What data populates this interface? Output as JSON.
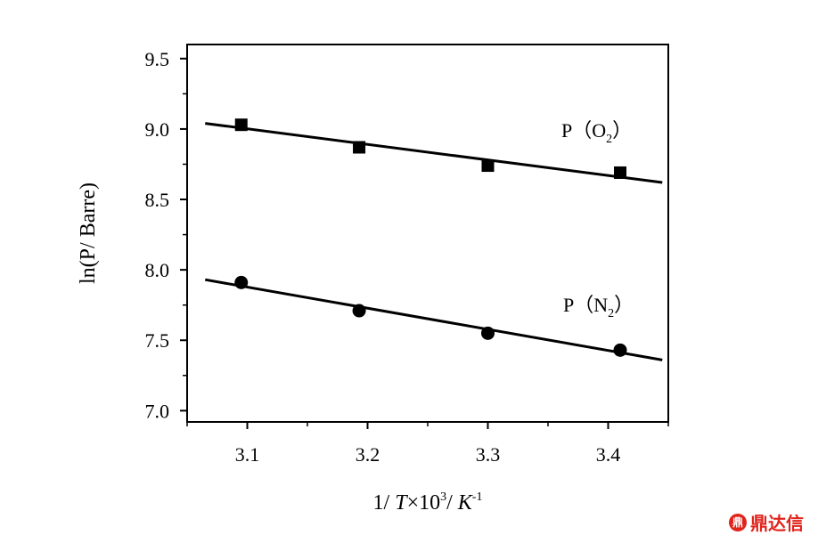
{
  "chart_data": {
    "type": "scatter",
    "xlabel": "1/ T×10³/ K⁻¹",
    "xlabel_parts": {
      "pre": "1/ ",
      "T": "T",
      "times": "×10",
      "exp3": "3",
      "slash": "/ ",
      "K": "K",
      "expneg1": "-1"
    },
    "ylabel": "ln(P/ Barre)",
    "xlim": [
      3.05,
      3.45
    ],
    "ylim": [
      6.92,
      9.6
    ],
    "xticks": [
      3.1,
      3.2,
      3.3,
      3.4
    ],
    "xtick_labels": [
      "3.1",
      "3.2",
      "3.3",
      "3.4"
    ],
    "yticks": [
      7.0,
      7.5,
      8.0,
      8.5,
      9.0,
      9.5
    ],
    "ytick_labels": [
      "7.0",
      "7.5",
      "8.0",
      "8.5",
      "9.0",
      "9.5"
    ],
    "series": [
      {
        "name": "P（O2）",
        "label_main": "P（O",
        "label_sub": "2",
        "label_close": "）",
        "marker": "square",
        "x": [
          3.095,
          3.193,
          3.3,
          3.41
        ],
        "y": [
          9.03,
          8.87,
          8.74,
          8.69
        ],
        "fit": {
          "x": [
            3.065,
            3.445
          ],
          "y": [
            9.04,
            8.62
          ]
        }
      },
      {
        "name": "P（N2）",
        "label_main": "P（N",
        "label_sub": "2",
        "label_close": "）",
        "marker": "circle",
        "x": [
          3.095,
          3.193,
          3.3,
          3.41
        ],
        "y": [
          7.91,
          7.71,
          7.55,
          7.43
        ],
        "fit": {
          "x": [
            3.065,
            3.445
          ],
          "y": [
            7.93,
            7.36
          ]
        }
      }
    ],
    "legend": "none",
    "grid": false
  },
  "watermark": {
    "logo": "鼎",
    "text": "鼎达信"
  }
}
